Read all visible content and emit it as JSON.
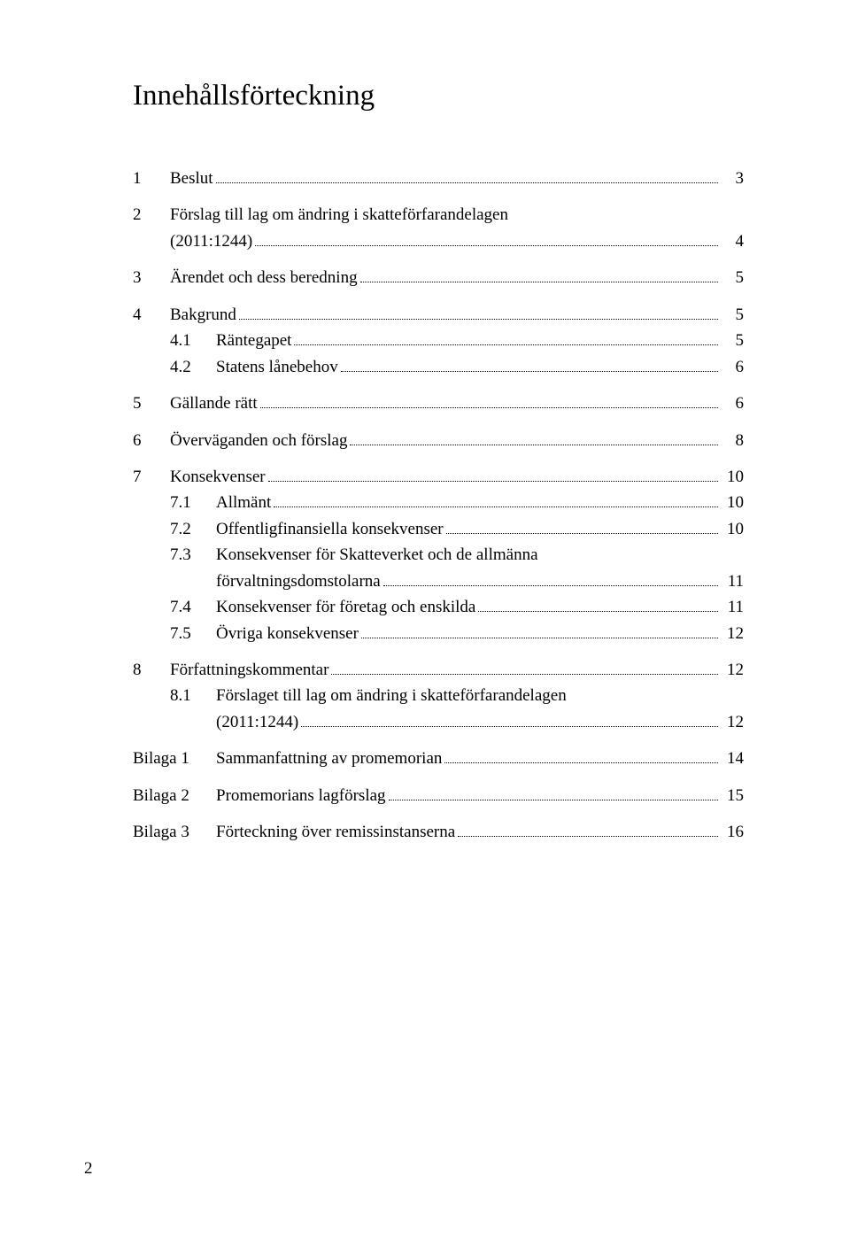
{
  "title": "Innehållsförteckning",
  "toc": [
    {
      "type": "top",
      "num": "1",
      "label": "Beslut",
      "page": "3",
      "gap": false
    },
    {
      "type": "top-multiline",
      "num": "2",
      "label1": "Förslag till lag om ändring i skatteförfarandelagen",
      "label2": "(2011:1244)",
      "page": "4",
      "gap": true
    },
    {
      "type": "top",
      "num": "3",
      "label": "Ärendet och dess beredning",
      "page": "5",
      "gap": true
    },
    {
      "type": "top",
      "num": "4",
      "label": "Bakgrund",
      "page": "5",
      "gap": true
    },
    {
      "type": "sub",
      "num": "4.1",
      "label": "Räntegapet",
      "page": "5",
      "gap": false
    },
    {
      "type": "sub",
      "num": "4.2",
      "label": "Statens lånebehov",
      "page": "6",
      "gap": false
    },
    {
      "type": "top",
      "num": "5",
      "label": "Gällande rätt",
      "page": "6",
      "gap": true
    },
    {
      "type": "top",
      "num": "6",
      "label": "Överväganden och förslag",
      "page": "8",
      "gap": true
    },
    {
      "type": "top",
      "num": "7",
      "label": "Konsekvenser",
      "page": "10",
      "gap": true
    },
    {
      "type": "sub",
      "num": "7.1",
      "label": "Allmänt",
      "page": "10",
      "gap": false
    },
    {
      "type": "sub",
      "num": "7.2",
      "label": "Offentligfinansiella konsekvenser",
      "page": "10",
      "gap": false
    },
    {
      "type": "sub-multiline",
      "num": "7.3",
      "label1": "Konsekvenser för Skatteverket och de allmänna",
      "label2": "förvaltningsdomstolarna",
      "page": "11",
      "gap": false
    },
    {
      "type": "sub",
      "num": "7.4",
      "label": "Konsekvenser för företag och enskilda",
      "page": "11",
      "gap": false
    },
    {
      "type": "sub",
      "num": "7.5",
      "label": "Övriga konsekvenser",
      "page": "12",
      "gap": false
    },
    {
      "type": "top",
      "num": "8",
      "label": "Författningskommentar",
      "page": "12",
      "gap": true
    },
    {
      "type": "sub-multiline",
      "num": "8.1",
      "label1": "Förslaget till lag om ändring i skatteförfarandelagen",
      "label2": "(2011:1244)",
      "page": "12",
      "gap": false
    },
    {
      "type": "bilaga",
      "num": "Bilaga 1",
      "label": "Sammanfattning av promemorian",
      "page": "14",
      "gap": true
    },
    {
      "type": "bilaga",
      "num": "Bilaga 2",
      "label": "Promemorians lagförslag",
      "page": "15",
      "gap": true
    },
    {
      "type": "bilaga",
      "num": "Bilaga 3",
      "label": "Förteckning över remissinstanserna",
      "page": "16",
      "gap": true
    }
  ],
  "footer_page": "2"
}
